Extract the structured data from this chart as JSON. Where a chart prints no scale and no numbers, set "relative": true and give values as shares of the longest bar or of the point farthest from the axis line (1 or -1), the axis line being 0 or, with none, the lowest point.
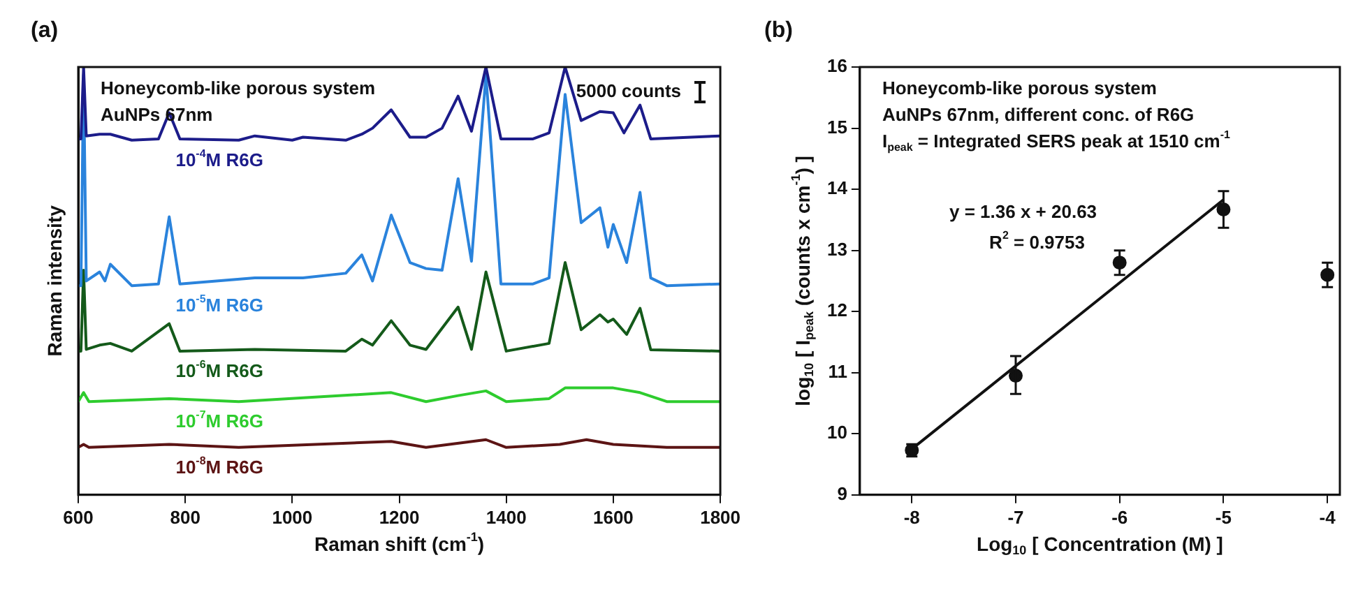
{
  "chart_data": [
    {
      "type": "line",
      "title": "(a)",
      "xlabel": "Raman shift (cm$^{-1}$)",
      "ylabel": "Raman intensity",
      "relative": true,
      "xlim": [
        600,
        1800
      ],
      "xticks": [
        600,
        800,
        1000,
        1200,
        1400,
        1600,
        1800
      ],
      "grid": false,
      "legend": false,
      "annotations": [
        "Honeycomb-like porous system",
        "AuNPs 67nm",
        "5000 counts"
      ],
      "series": [
        {
          "name": "10$^{-4}$M R6G",
          "color": "#1c1c8a",
          "x": [
            600,
            605,
            610,
            615,
            640,
            660,
            700,
            750,
            770,
            790,
            900,
            930,
            1000,
            1020,
            1100,
            1130,
            1150,
            1185,
            1220,
            1250,
            1280,
            1310,
            1335,
            1362,
            1390,
            1450,
            1480,
            1510,
            1540,
            1575,
            1600,
            1620,
            1650,
            1670,
            1800
          ],
          "values": [
            0.832,
            0.832,
            1,
            0.839,
            0.843,
            0.843,
            0.829,
            0.832,
            0.893,
            0.832,
            0.829,
            0.839,
            0.829,
            0.836,
            0.829,
            0.843,
            0.857,
            0.9,
            0.836,
            0.836,
            0.857,
            0.932,
            0.85,
            1,
            0.832,
            0.832,
            0.846,
            1,
            0.875,
            0.896,
            0.893,
            0.846,
            0.911,
            0.832,
            0.839
          ]
        },
        {
          "name": "10$^{-5}$M R6G",
          "color": "#2a83dc",
          "x": [
            600,
            605,
            610,
            615,
            640,
            650,
            660,
            700,
            750,
            770,
            790,
            930,
            1020,
            1100,
            1130,
            1150,
            1185,
            1220,
            1250,
            1280,
            1310,
            1335,
            1362,
            1390,
            1450,
            1480,
            1510,
            1540,
            1575,
            1590,
            1600,
            1625,
            1650,
            1670,
            1700,
            1800
          ],
          "values": [
            0.489,
            0.489,
            0.982,
            0.5,
            0.521,
            0.5,
            0.539,
            0.489,
            0.493,
            0.65,
            0.493,
            0.507,
            0.507,
            0.518,
            0.561,
            0.5,
            0.654,
            0.543,
            0.529,
            0.525,
            0.739,
            0.546,
            0.982,
            0.493,
            0.493,
            0.507,
            0.936,
            0.636,
            0.671,
            0.579,
            0.632,
            0.543,
            0.707,
            0.507,
            0.489,
            0.493
          ]
        },
        {
          "name": "10$^{-6}$M R6G",
          "color": "#145a1a",
          "x": [
            600,
            605,
            610,
            615,
            640,
            660,
            700,
            770,
            790,
            930,
            1100,
            1130,
            1150,
            1185,
            1220,
            1250,
            1310,
            1335,
            1362,
            1400,
            1480,
            1510,
            1540,
            1575,
            1590,
            1600,
            1625,
            1650,
            1670,
            1800
          ],
          "values": [
            0.336,
            0.336,
            0.525,
            0.34,
            0.35,
            0.354,
            0.336,
            0.4,
            0.336,
            0.34,
            0.336,
            0.364,
            0.35,
            0.407,
            0.35,
            0.34,
            0.439,
            0.34,
            0.521,
            0.336,
            0.354,
            0.543,
            0.386,
            0.421,
            0.404,
            0.411,
            0.375,
            0.436,
            0.339,
            0.336
          ]
        },
        {
          "name": "10$^{-7}$M R6G",
          "color": "#2ecc2e",
          "x": [
            600,
            610,
            620,
            770,
            900,
            1185,
            1250,
            1310,
            1362,
            1400,
            1480,
            1510,
            1575,
            1600,
            1650,
            1700,
            1800
          ],
          "values": [
            0.218,
            0.239,
            0.218,
            0.225,
            0.218,
            0.239,
            0.218,
            0.232,
            0.243,
            0.218,
            0.225,
            0.25,
            0.25,
            0.25,
            0.239,
            0.218,
            0.218
          ]
        },
        {
          "name": "10$^{-8}$M R6G",
          "color": "#5c1414",
          "x": [
            600,
            610,
            620,
            770,
            900,
            1185,
            1250,
            1362,
            1400,
            1500,
            1550,
            1600,
            1700,
            1800
          ],
          "values": [
            0.111,
            0.118,
            0.111,
            0.118,
            0.111,
            0.125,
            0.111,
            0.129,
            0.111,
            0.118,
            0.129,
            0.118,
            0.111,
            0.111
          ]
        }
      ]
    },
    {
      "type": "scatter",
      "title": "(b)",
      "xlabel": "Log$_{10}$ [ Concentration (M) ]",
      "ylabel": "log$_{10}$ [ I$_{peak}$ (counts x cm$^{-1}$) ]",
      "xlim": [
        -8.5,
        -3.88
      ],
      "xticks": [
        -8,
        -7,
        -6,
        -5,
        -4
      ],
      "ylim": [
        9,
        16
      ],
      "yticks": [
        9,
        10,
        11,
        12,
        13,
        14,
        15,
        16
      ],
      "grid": false,
      "legend": false,
      "annotations": [
        "Honeycomb-like porous system",
        "AuNPs 67nm, different conc. of R6G",
        "I$_{peak}$ = Integrated SERS peak at 1510 cm$^{-1}$",
        "y = 1.36 x + 20.63",
        "R$^{2}$ = 0.9753"
      ],
      "series": [
        {
          "color": "#111111",
          "marker": "circle",
          "x": [
            -8,
            -7,
            -6,
            -5,
            -4
          ],
          "values": [
            9.73,
            10.95,
            12.8,
            13.67,
            12.6
          ],
          "errors": [
            0.1,
            [
              10.65,
              11.27
            ],
            0.2,
            0.3,
            0.2
          ]
        },
        {
          "type": "line",
          "color": "#111111",
          "x": [
            -8,
            -5
          ],
          "values": [
            9.75,
            13.83
          ]
        }
      ]
    }
  ]
}
